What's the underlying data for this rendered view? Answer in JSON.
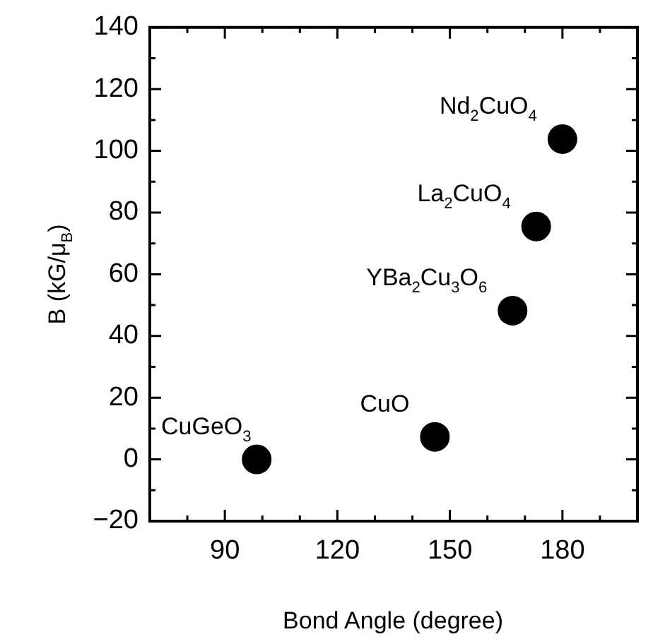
{
  "chart_data": {
    "type": "scatter",
    "xlabel": "Bond Angle (degree)",
    "ylabel": "B (kG/μ$_{B}$)",
    "x": [
      98.5,
      146,
      166.7,
      173,
      180
    ],
    "values": [
      0,
      7.3,
      48.2,
      75.5,
      103.8
    ],
    "color": "#000000",
    "marker": "circle",
    "xlim": [
      70,
      200
    ],
    "xticks": [
      90,
      120,
      150,
      180
    ],
    "ylim": [
      -20,
      140
    ],
    "yticks": [
      -20,
      0,
      20,
      40,
      60,
      80,
      100,
      120,
      140
    ],
    "grid": false,
    "legend": false,
    "annotations": [
      {
        "text": "CuGeO$_{3}$",
        "x": 98.5,
        "y": 0
      },
      {
        "text": "CuO",
        "x": 146,
        "y": 7.3
      },
      {
        "text": "YBa$_{2}$Cu$_{3}$O$_{6}$",
        "x": 166.7,
        "y": 48.2
      },
      {
        "text": "La$_{2}$CuO$_{4}$",
        "x": 173,
        "y": 75.5
      },
      {
        "text": "Nd$_{2}$CuO$_{4}$",
        "x": 180,
        "y": 103.8
      }
    ]
  }
}
